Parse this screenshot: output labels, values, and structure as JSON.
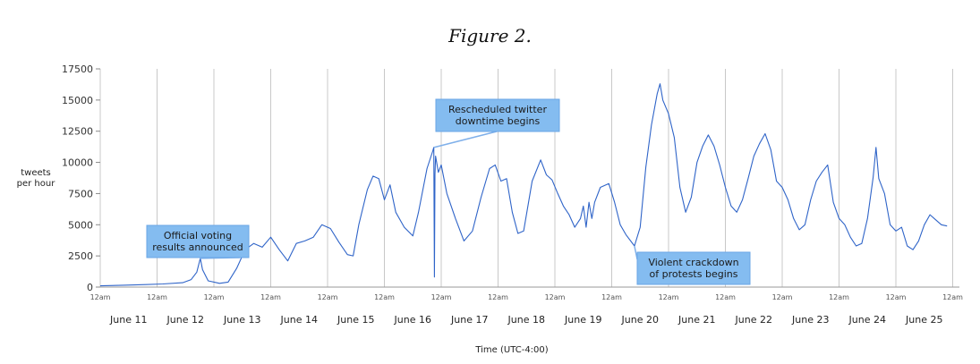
{
  "figure_title": "Figure 2.",
  "chart_data": {
    "type": "line",
    "title": "Figure 2.",
    "ylabel_lines": [
      "tweets",
      "per hour"
    ],
    "xlabel": "Time (UTC-4:00)",
    "ylim": [
      0,
      17500
    ],
    "yticks": [
      0,
      2500,
      5000,
      7500,
      10000,
      12500,
      15000,
      17500
    ],
    "ytick_labels": [
      "0",
      "2500",
      "5000",
      "7500",
      "10000",
      "12500",
      "15000",
      "17500"
    ],
    "xlim_days": [
      0,
      15.4
    ],
    "midnight_label": "12am",
    "day_labels": [
      "June 11",
      "June 12",
      "June 13",
      "June 14",
      "June 15",
      "June 16",
      "June 17",
      "June 18",
      "June 19",
      "June 20",
      "June 21",
      "June 22",
      "June 23",
      "June 24",
      "June 25"
    ],
    "series": [
      {
        "name": "tweets per hour",
        "color": "#2f64c8",
        "points": [
          [
            0.0,
            100
          ],
          [
            0.4,
            150
          ],
          [
            0.8,
            200
          ],
          [
            1.1,
            250
          ],
          [
            1.45,
            350
          ],
          [
            1.6,
            600
          ],
          [
            1.7,
            1200
          ],
          [
            1.76,
            2300
          ],
          [
            1.8,
            1400
          ],
          [
            1.9,
            500
          ],
          [
            2.1,
            300
          ],
          [
            2.25,
            400
          ],
          [
            2.4,
            1500
          ],
          [
            2.55,
            3000
          ],
          [
            2.7,
            3500
          ],
          [
            2.85,
            3200
          ],
          [
            3.0,
            4000
          ],
          [
            3.15,
            3000
          ],
          [
            3.3,
            2100
          ],
          [
            3.45,
            3500
          ],
          [
            3.6,
            3700
          ],
          [
            3.75,
            4000
          ],
          [
            3.9,
            5000
          ],
          [
            4.05,
            4700
          ],
          [
            4.2,
            3600
          ],
          [
            4.35,
            2600
          ],
          [
            4.45,
            2500
          ],
          [
            4.55,
            5000
          ],
          [
            4.7,
            7800
          ],
          [
            4.8,
            8900
          ],
          [
            4.9,
            8700
          ],
          [
            5.0,
            7000
          ],
          [
            5.1,
            8200
          ],
          [
            5.2,
            6000
          ],
          [
            5.35,
            4800
          ],
          [
            5.5,
            4100
          ],
          [
            5.6,
            6000
          ],
          [
            5.75,
            9500
          ],
          [
            5.85,
            10900
          ],
          [
            5.87,
            11200
          ],
          [
            5.88,
            800
          ],
          [
            5.89,
            9000
          ],
          [
            5.9,
            10500
          ],
          [
            5.95,
            9200
          ],
          [
            6.0,
            9800
          ],
          [
            6.1,
            7500
          ],
          [
            6.25,
            5500
          ],
          [
            6.4,
            3700
          ],
          [
            6.55,
            4500
          ],
          [
            6.7,
            7200
          ],
          [
            6.85,
            9500
          ],
          [
            6.95,
            9800
          ],
          [
            7.05,
            8500
          ],
          [
            7.15,
            8700
          ],
          [
            7.25,
            6000
          ],
          [
            7.35,
            4300
          ],
          [
            7.45,
            4500
          ],
          [
            7.6,
            8500
          ],
          [
            7.75,
            10200
          ],
          [
            7.85,
            9000
          ],
          [
            7.95,
            8600
          ],
          [
            8.05,
            7500
          ],
          [
            8.15,
            6500
          ],
          [
            8.25,
            5800
          ],
          [
            8.35,
            4800
          ],
          [
            8.45,
            5500
          ],
          [
            8.5,
            6500
          ],
          [
            8.55,
            4800
          ],
          [
            8.6,
            6800
          ],
          [
            8.65,
            5500
          ],
          [
            8.7,
            6800
          ],
          [
            8.8,
            8000
          ],
          [
            8.95,
            8300
          ],
          [
            9.05,
            6800
          ],
          [
            9.15,
            5000
          ],
          [
            9.25,
            4200
          ],
          [
            9.4,
            3300
          ],
          [
            9.5,
            4800
          ],
          [
            9.6,
            9600
          ],
          [
            9.7,
            13000
          ],
          [
            9.8,
            15500
          ],
          [
            9.85,
            16300
          ],
          [
            9.9,
            15000
          ],
          [
            10.0,
            13900
          ],
          [
            10.1,
            12000
          ],
          [
            10.2,
            8000
          ],
          [
            10.3,
            6000
          ],
          [
            10.4,
            7200
          ],
          [
            10.5,
            10000
          ],
          [
            10.6,
            11300
          ],
          [
            10.7,
            12200
          ],
          [
            10.8,
            11300
          ],
          [
            10.9,
            9800
          ],
          [
            11.0,
            8000
          ],
          [
            11.1,
            6500
          ],
          [
            11.2,
            6000
          ],
          [
            11.3,
            7000
          ],
          [
            11.4,
            8700
          ],
          [
            11.5,
            10500
          ],
          [
            11.6,
            11500
          ],
          [
            11.7,
            12300
          ],
          [
            11.8,
            11000
          ],
          [
            11.9,
            8500
          ],
          [
            12.0,
            8000
          ],
          [
            12.1,
            7000
          ],
          [
            12.2,
            5500
          ],
          [
            12.3,
            4600
          ],
          [
            12.4,
            5000
          ],
          [
            12.5,
            7000
          ],
          [
            12.6,
            8500
          ],
          [
            12.7,
            9200
          ],
          [
            12.8,
            9800
          ],
          [
            12.9,
            6800
          ],
          [
            13.0,
            5500
          ],
          [
            13.1,
            5000
          ],
          [
            13.2,
            4000
          ],
          [
            13.3,
            3300
          ],
          [
            13.4,
            3500
          ],
          [
            13.5,
            5500
          ],
          [
            13.6,
            8800
          ],
          [
            13.65,
            11200
          ],
          [
            13.7,
            8700
          ],
          [
            13.8,
            7500
          ],
          [
            13.9,
            5000
          ],
          [
            14.0,
            4500
          ],
          [
            14.1,
            4800
          ],
          [
            14.2,
            3300
          ],
          [
            14.3,
            3000
          ],
          [
            14.4,
            3700
          ],
          [
            14.5,
            5000
          ],
          [
            14.6,
            5800
          ],
          [
            14.7,
            5400
          ],
          [
            14.8,
            5000
          ],
          [
            14.9,
            4900
          ]
        ]
      }
    ],
    "annotations": [
      {
        "lines": [
          "Official voting",
          "results announced"
        ],
        "target": [
          1.75,
          2300
        ]
      },
      {
        "lines": [
          "Rescheduled twitter",
          "downtime begins"
        ],
        "target": [
          5.87,
          11200
        ]
      },
      {
        "lines": [
          "Violent crackdown",
          "of protests begins"
        ],
        "target": [
          9.4,
          3300
        ]
      }
    ]
  }
}
